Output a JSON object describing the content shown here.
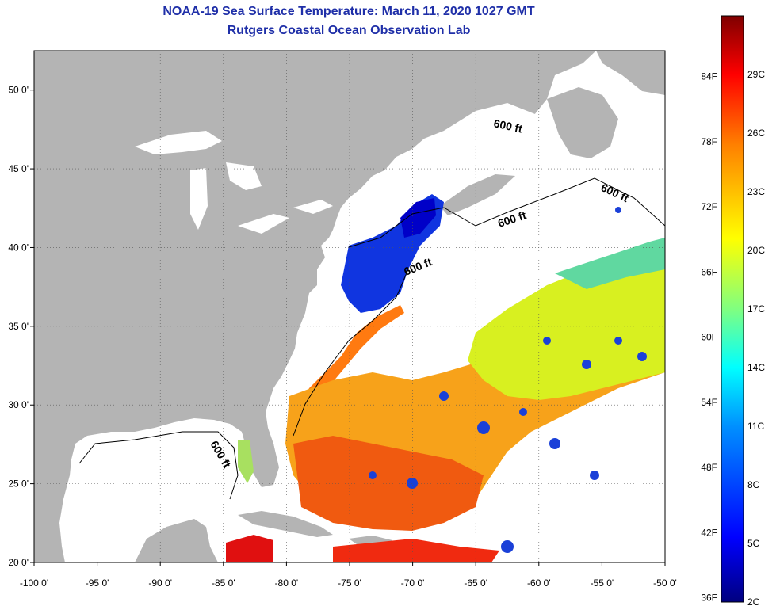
{
  "title": {
    "line1": "NOAA-19 Sea Surface Temperature:  March 11, 2020 1027 GMT",
    "line2": "Rutgers Coastal Ocean Observation Lab"
  },
  "map": {
    "lon_range": [
      -100,
      -50
    ],
    "lat_range": [
      20,
      52.5
    ],
    "lon_ticks": [
      "-100 0'",
      "-95 0'",
      "-90 0'",
      "-85 0'",
      "-80 0'",
      "-75 0'",
      "-70 0'",
      "-65 0'",
      "-60 0'",
      "-55 0'",
      "-50 0'"
    ],
    "lat_ticks": [
      "20 0'",
      "25 0'",
      "30 0'",
      "35 0'",
      "40 0'",
      "45 0'",
      "50 0'"
    ],
    "land_color": "#b4b4b4",
    "no_data_color": "#ffffff",
    "isobath_labels": [
      "600 ft",
      "600 ft",
      "600 ft",
      "600 ft",
      "600 ft"
    ]
  },
  "colorbar": {
    "fahrenheit": [
      "36F",
      "42F",
      "48F",
      "54F",
      "60F",
      "66F",
      "72F",
      "78F",
      "84F"
    ],
    "celsius": [
      "2C",
      "5C",
      "8C",
      "11C",
      "14C",
      "17C",
      "20C",
      "23C",
      "26C",
      "29C"
    ],
    "colors": [
      "#00007f",
      "#0000ff",
      "#007fff",
      "#00ffff",
      "#7fff7f",
      "#ffff00",
      "#ff7f00",
      "#ff0000",
      "#7f0000"
    ]
  }
}
